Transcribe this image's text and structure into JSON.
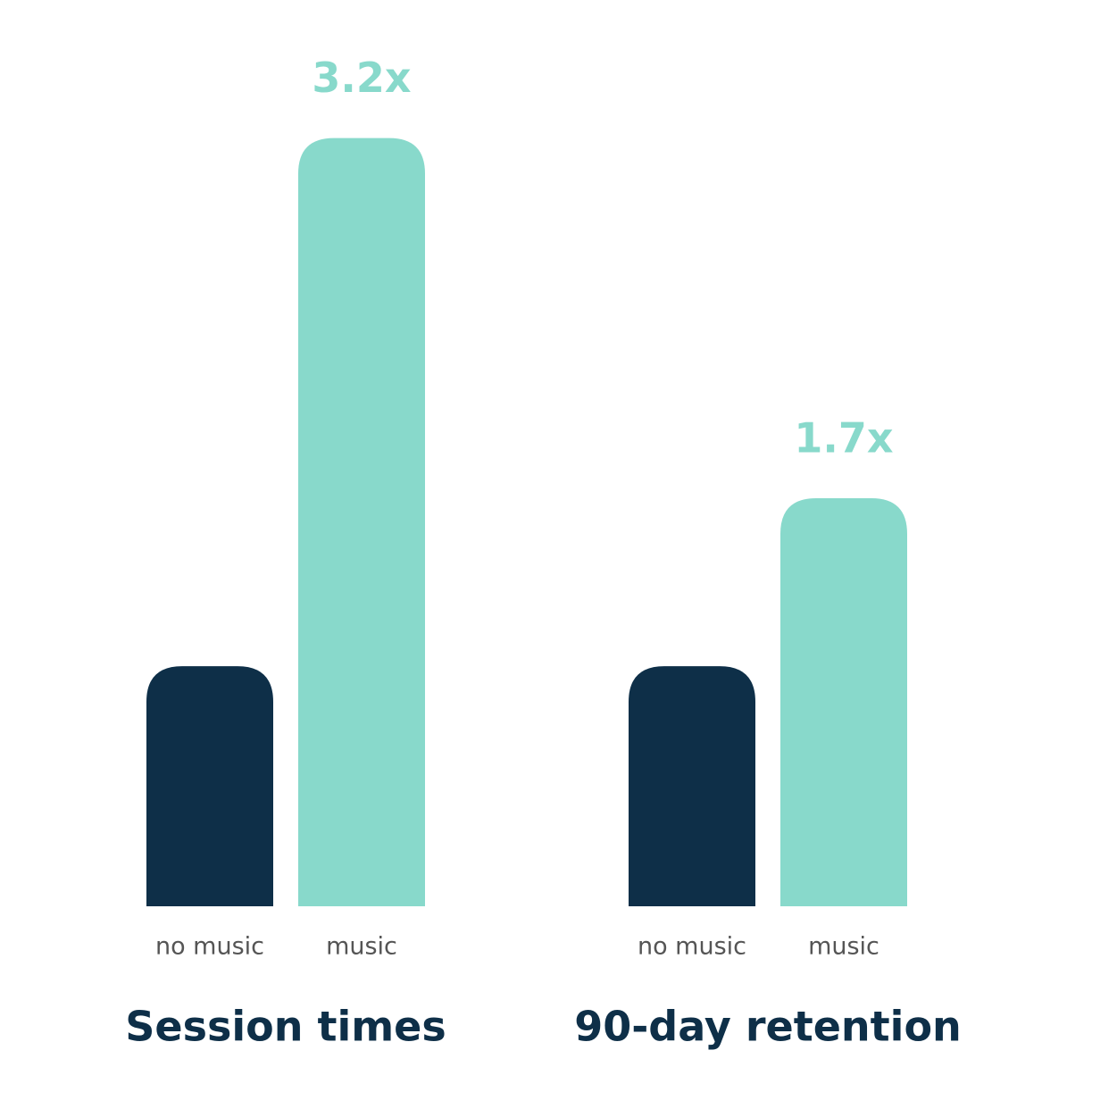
{
  "chart_data": [
    {
      "type": "bar",
      "title": "Session times",
      "categories": [
        "no music",
        "music"
      ],
      "values": [
        1,
        3.2
      ],
      "value_labels": [
        null,
        "3.2x"
      ],
      "colors": [
        "#0e2f48",
        "#88d9cb"
      ],
      "ylim": [
        0,
        3.5
      ]
    },
    {
      "type": "bar",
      "title": "90-day retention",
      "categories": [
        "no music",
        "music"
      ],
      "values": [
        1,
        1.7
      ],
      "value_labels": [
        null,
        "1.7x"
      ],
      "colors": [
        "#0e2f48",
        "#88d9cb"
      ],
      "ylim": [
        0,
        3.5
      ]
    }
  ]
}
